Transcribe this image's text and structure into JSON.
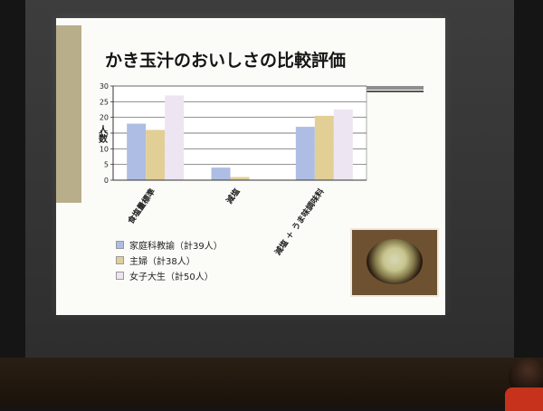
{
  "slide": {
    "title": "かき玉汁のおいしさの比較評価"
  },
  "chart_data": {
    "type": "bar",
    "title": "",
    "ylabel": "人数",
    "ylim": [
      0,
      30
    ],
    "yticks": [
      0,
      5,
      10,
      15,
      20,
      25,
      30
    ],
    "categories": [
      "食塩量標準",
      "減塩",
      "減塩 ＋ うま味調味料"
    ],
    "series": [
      {
        "name": "家庭科教諭（計39人）",
        "color": "#aebde3",
        "values": [
          18,
          4,
          17
        ]
      },
      {
        "name": "主婦（計38人）",
        "color": "#e2cf96",
        "values": [
          16,
          1,
          20.5
        ]
      },
      {
        "name": "女子大生（計50人）",
        "color": "#ede5f1",
        "values": [
          27,
          0,
          22.5
        ]
      }
    ],
    "grid": true,
    "legend_position": "bottom-left"
  }
}
